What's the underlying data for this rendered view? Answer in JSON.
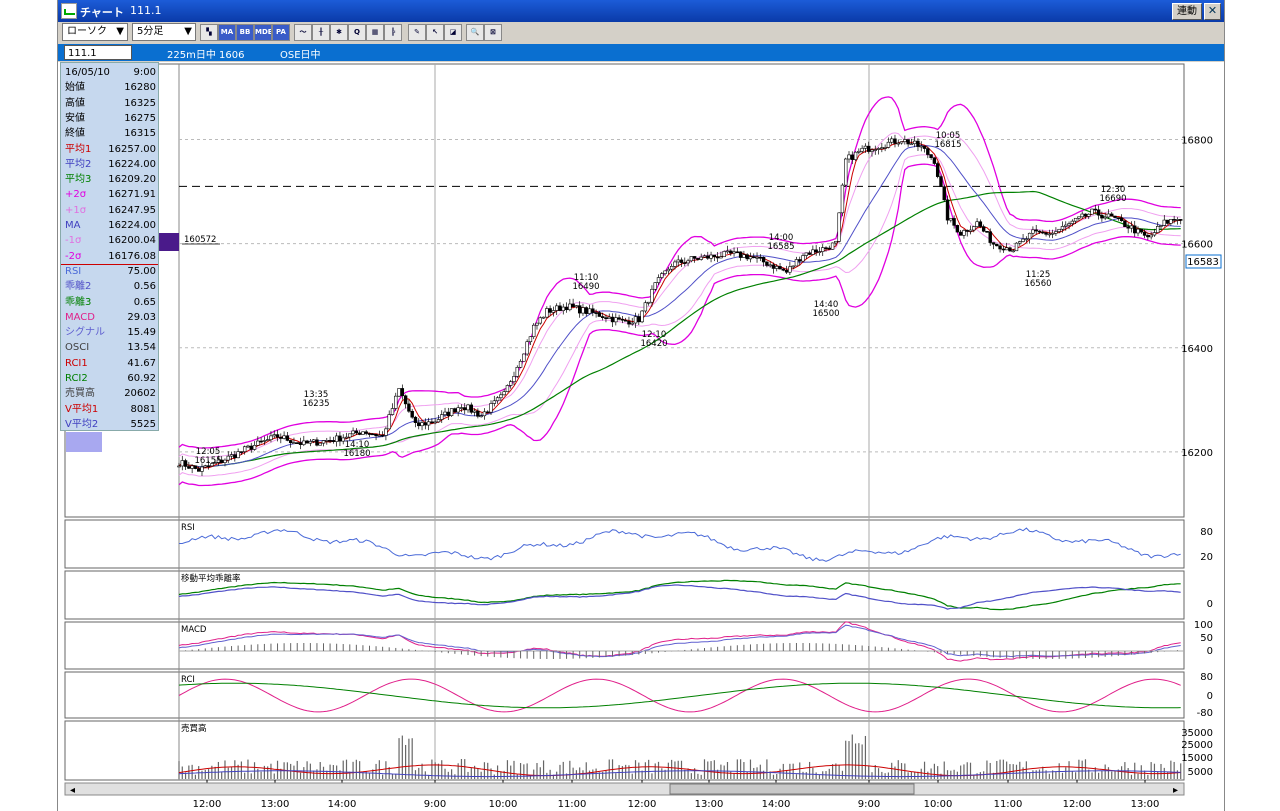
{
  "window": {
    "icon": "chart-app-icon",
    "title": "チャート",
    "symbol": "111.1",
    "link_label": "連動"
  },
  "toolbar": {
    "chart_type": "ローソク",
    "interval": "5分足",
    "buttons": [
      {
        "name": "layout-icon",
        "label": "▚"
      },
      {
        "name": "ma-button",
        "label": "MA"
      },
      {
        "name": "bb-button",
        "label": "BB"
      },
      {
        "name": "mde-button",
        "label": "MDE"
      },
      {
        "name": "pa-button",
        "label": "PA"
      },
      {
        "name": "line-tool-icon",
        "label": "〜"
      },
      {
        "name": "chart-tool-icon",
        "label": "╫"
      },
      {
        "name": "star-tool-icon",
        "label": "✱"
      },
      {
        "name": "zoom-icon",
        "label": "Q"
      },
      {
        "name": "grid-tool-icon",
        "label": "▦"
      },
      {
        "name": "bar-tool-icon",
        "label": "╠"
      },
      {
        "name": "pen-icon",
        "label": "✎"
      },
      {
        "name": "cursor-icon",
        "label": "↖"
      },
      {
        "name": "eraser-icon",
        "label": "◪"
      },
      {
        "name": "search-icon",
        "label": "🔍"
      },
      {
        "name": "clear-icon",
        "label": "⊠"
      }
    ]
  },
  "info": {
    "symbol": "111.1",
    "contract": "225m日中 1606",
    "exchange": "OSE日中"
  },
  "datapanel": {
    "rows": [
      {
        "label": "16/05/10",
        "value": "9:00",
        "color": "#000000"
      },
      {
        "label": "始値",
        "value": "16280",
        "color": "#000000"
      },
      {
        "label": "高値",
        "value": "16325",
        "color": "#000000"
      },
      {
        "label": "安値",
        "value": "16275",
        "color": "#000000"
      },
      {
        "label": "終値",
        "value": "16315",
        "color": "#000000"
      },
      {
        "label": "平均1",
        "value": "16257.00",
        "color": "#cc0000"
      },
      {
        "label": "平均2",
        "value": "16224.00",
        "color": "#4040c0"
      },
      {
        "label": "平均3",
        "value": "16209.20",
        "color": "#008000"
      },
      {
        "label": "+2σ",
        "value": "16271.91",
        "color": "#e000e0"
      },
      {
        "label": "+1σ",
        "value": "16247.95",
        "color": "#e070e0"
      },
      {
        "label": "MA",
        "value": "16224.00",
        "color": "#4040c0"
      },
      {
        "label": "-1σ",
        "value": "16200.04",
        "color": "#e070e0"
      },
      {
        "label": "-2σ",
        "value": "16176.08",
        "color": "#e000e0"
      },
      {
        "label": "RSI",
        "value": "75.00",
        "color": "#4a6ad8"
      },
      {
        "label": "乖離2",
        "value": "0.56",
        "color": "#5050c8"
      },
      {
        "label": "乖離3",
        "value": "0.65",
        "color": "#008000"
      },
      {
        "label": "MACD",
        "value": "29.03",
        "color": "#e0208a"
      },
      {
        "label": "シグナル",
        "value": "15.49",
        "color": "#6060d0"
      },
      {
        "label": "OSCI",
        "value": "13.54",
        "color": "#404040"
      },
      {
        "label": "RCI1",
        "value": "41.67",
        "color": "#cc0000"
      },
      {
        "label": "RCI2",
        "value": "60.92",
        "color": "#008000"
      },
      {
        "label": "売買高",
        "value": "20602",
        "color": "#404040"
      },
      {
        "label": "V平均1",
        "value": "8081",
        "color": "#cc0000"
      },
      {
        "label": "V平均2",
        "value": "5525",
        "color": "#4040c0"
      }
    ]
  },
  "price_labels": {
    "ref_box": "160572",
    "current": "16583"
  },
  "chart_data": {
    "type": "candlestick",
    "y_axis": {
      "ticks": [
        16200,
        16400,
        16600,
        16800
      ],
      "range": [
        16075,
        16945
      ]
    },
    "x_ticks": [
      "12:00",
      "13:00",
      "14:00",
      "9:00",
      "10:00",
      "11:00",
      "12:00",
      "13:00",
      "14:00",
      "9:00",
      "10:00",
      "11:00",
      "12:00",
      "13:00"
    ],
    "reference_line": 16710,
    "close_anchors": [
      [
        0,
        16180
      ],
      [
        6,
        16165
      ],
      [
        12,
        16180
      ],
      [
        22,
        16210
      ],
      [
        30,
        16230
      ],
      [
        38,
        16215
      ],
      [
        48,
        16225
      ],
      [
        56,
        16240
      ],
      [
        62,
        16230
      ],
      [
        67,
        16320
      ],
      [
        72,
        16250
      ],
      [
        78,
        16260
      ],
      [
        86,
        16290
      ],
      [
        92,
        16270
      ],
      [
        99,
        16310
      ],
      [
        104,
        16380
      ],
      [
        108,
        16440
      ],
      [
        112,
        16470
      ],
      [
        118,
        16480
      ],
      [
        124,
        16470
      ],
      [
        130,
        16460
      ],
      [
        135,
        16450
      ],
      [
        140,
        16455
      ],
      [
        145,
        16520
      ],
      [
        150,
        16560
      ],
      [
        156,
        16570
      ],
      [
        162,
        16575
      ],
      [
        168,
        16580
      ],
      [
        174,
        16575
      ],
      [
        180,
        16560
      ],
      [
        185,
        16545
      ],
      [
        190,
        16580
      ],
      [
        196,
        16590
      ],
      [
        200,
        16600
      ],
      [
        203,
        16760
      ],
      [
        208,
        16780
      ],
      [
        214,
        16790
      ],
      [
        220,
        16800
      ],
      [
        226,
        16785
      ],
      [
        230,
        16760
      ],
      [
        234,
        16650
      ],
      [
        238,
        16620
      ],
      [
        243,
        16640
      ],
      [
        248,
        16600
      ],
      [
        254,
        16590
      ],
      [
        260,
        16620
      ],
      [
        266,
        16620
      ],
      [
        272,
        16640
      ],
      [
        278,
        16660
      ],
      [
        284,
        16650
      ],
      [
        290,
        16630
      ],
      [
        295,
        16610
      ],
      [
        300,
        16640
      ],
      [
        305,
        16650
      ]
    ],
    "annotations": [
      {
        "time": "12:05",
        "price": "16155"
      },
      {
        "time": "13:35",
        "price": "16235"
      },
      {
        "time": "14:10",
        "price": "16180"
      },
      {
        "time": "11:10",
        "price": "16490"
      },
      {
        "time": "12:10",
        "price": "16420"
      },
      {
        "time": "14:00",
        "price": "16585"
      },
      {
        "time": "14:40",
        "price": "16500"
      },
      {
        "time": "10:05",
        "price": "16815"
      },
      {
        "time": "11:25",
        "price": "16560"
      },
      {
        "time": "12:30",
        "price": "16690"
      }
    ],
    "panels": [
      {
        "name": "RSI",
        "label": "RSI",
        "ticks": [
          "80",
          "20"
        ]
      },
      {
        "name": "deviation",
        "label": "移動平均乖離率",
        "ticks": [
          "0"
        ]
      },
      {
        "name": "macd",
        "label": "MACD",
        "ticks": [
          "100",
          "50",
          "0"
        ]
      },
      {
        "name": "rci",
        "label": "RCI",
        "ticks": [
          "80",
          "0",
          "-80"
        ]
      },
      {
        "name": "volume",
        "label": "売買高",
        "ticks": [
          "35000",
          "25000",
          "15000",
          "5000"
        ]
      }
    ]
  }
}
